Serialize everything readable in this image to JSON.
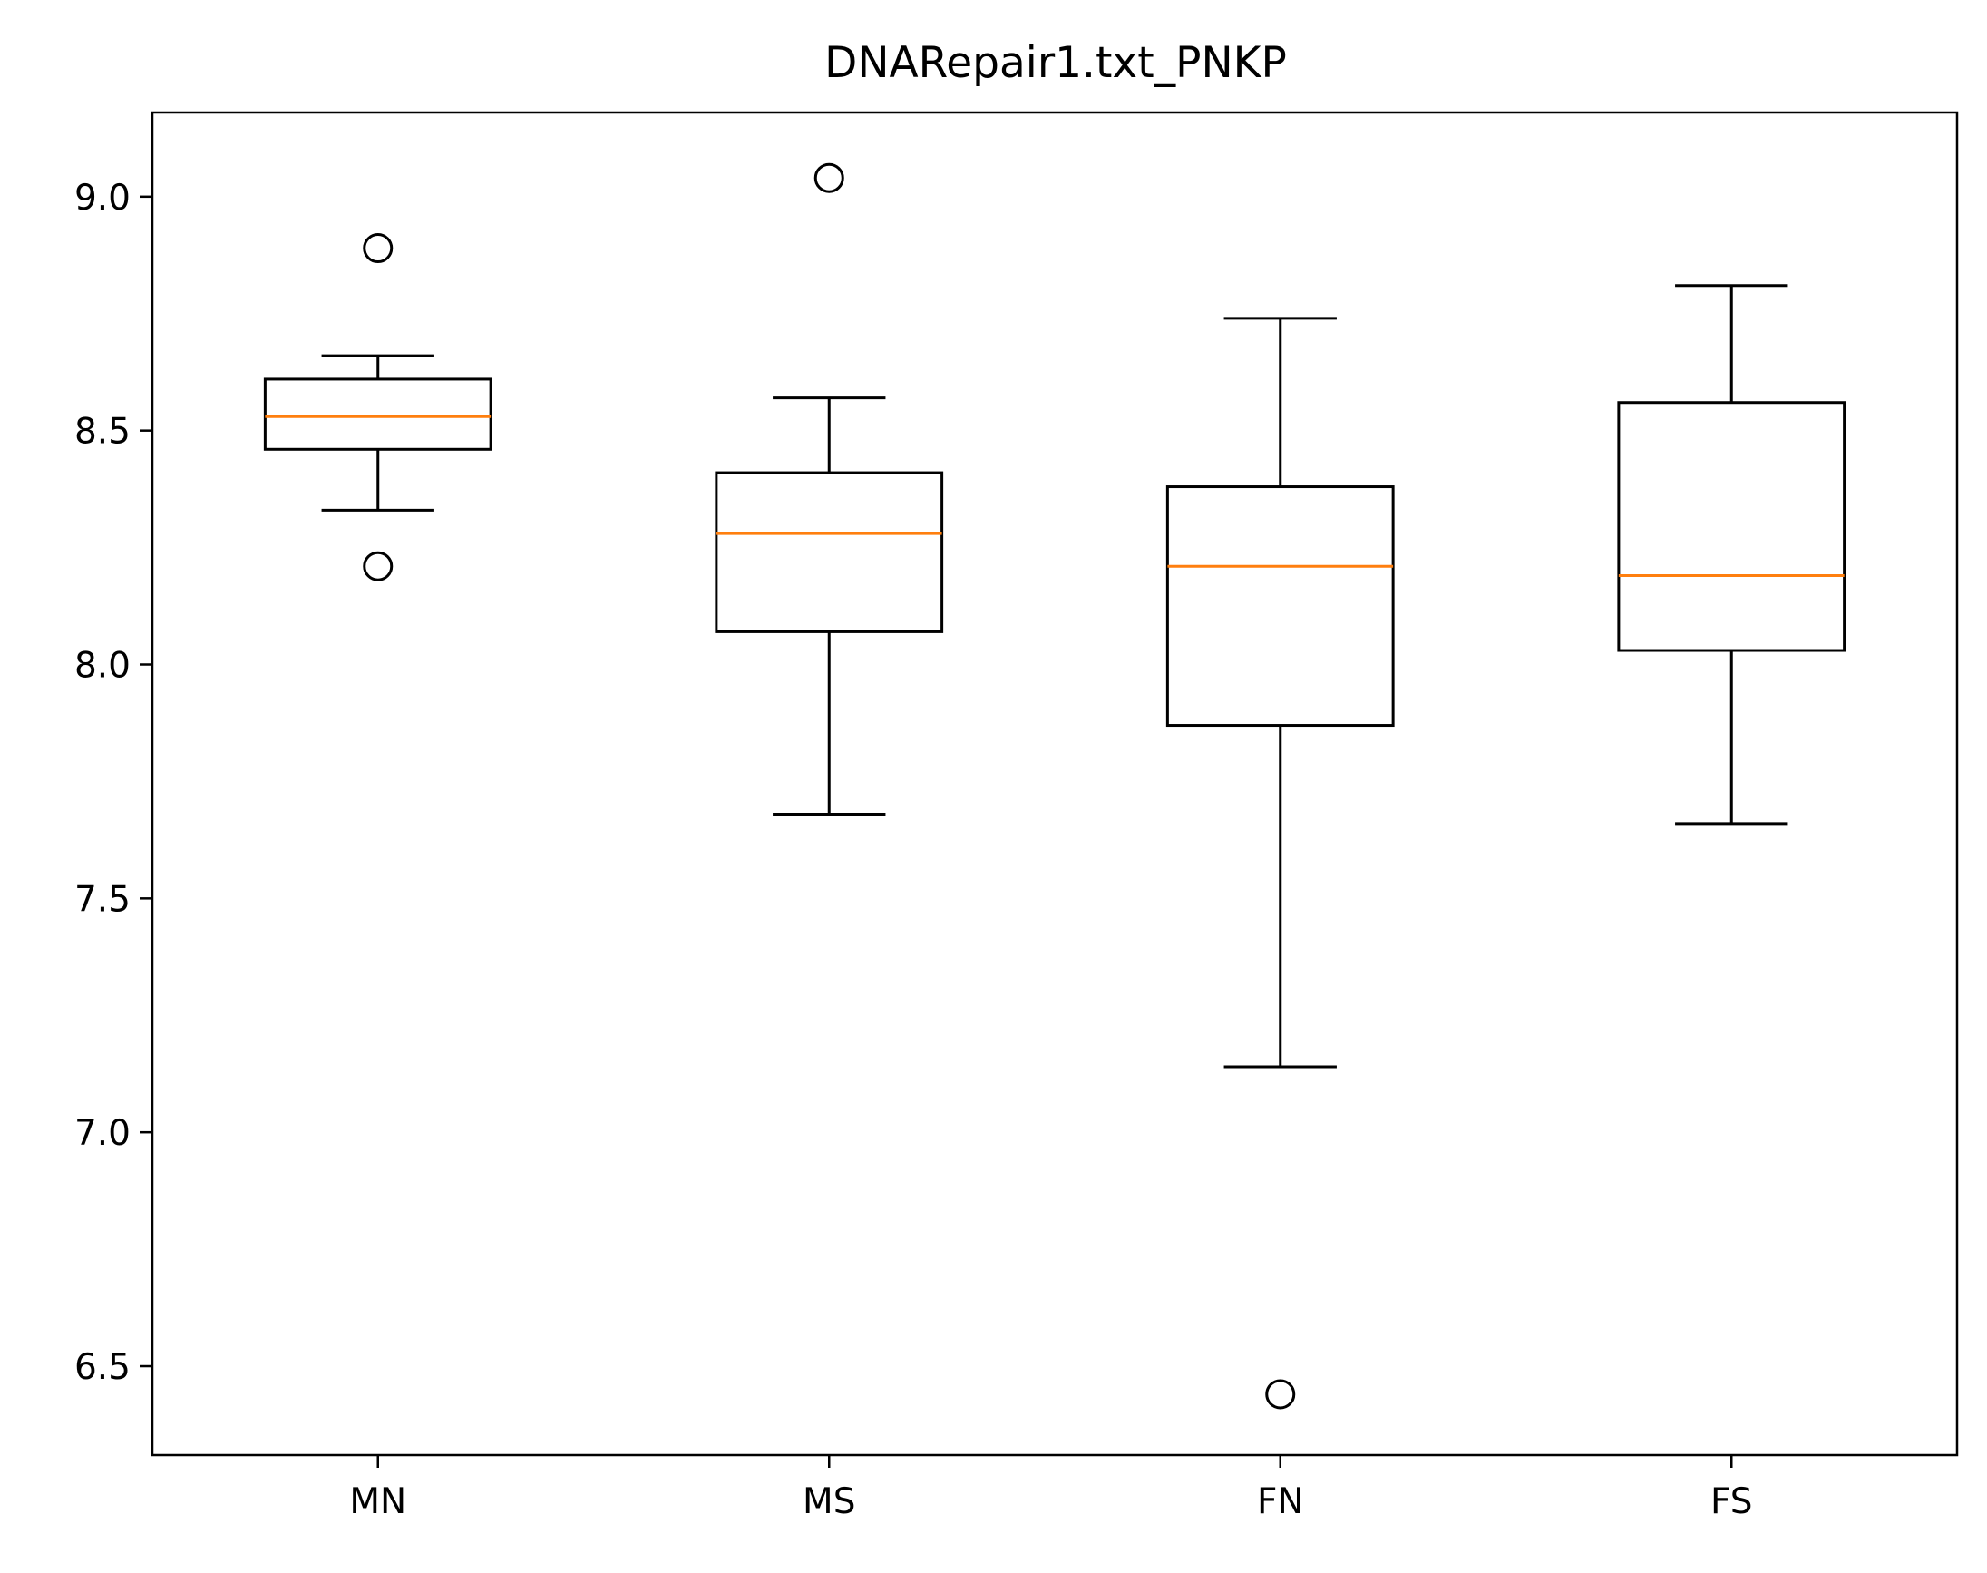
{
  "chart_data": {
    "type": "box",
    "title": "DNARepair1.txt_PNKP",
    "xlabel": "",
    "ylabel": "",
    "categories": [
      "MN",
      "MS",
      "FN",
      "FS"
    ],
    "ylim": [
      6.31,
      9.18
    ],
    "yticks": [
      6.5,
      7.0,
      7.5,
      8.0,
      8.5,
      9.0
    ],
    "ytick_labels": [
      "6.5",
      "7.0",
      "7.5",
      "8.0",
      "8.5",
      "9.0"
    ],
    "grid": false,
    "boxes": [
      {
        "category": "MN",
        "whisker_low": 8.33,
        "q1": 8.46,
        "median": 8.53,
        "q3": 8.61,
        "whisker_high": 8.66,
        "outliers": [
          8.89,
          8.21
        ]
      },
      {
        "category": "MS",
        "whisker_low": 7.68,
        "q1": 8.07,
        "median": 8.28,
        "q3": 8.41,
        "whisker_high": 8.57,
        "outliers": [
          9.04
        ]
      },
      {
        "category": "FN",
        "whisker_low": 7.14,
        "q1": 7.87,
        "median": 8.21,
        "q3": 8.38,
        "whisker_high": 8.74,
        "outliers": [
          6.44
        ]
      },
      {
        "category": "FS",
        "whisker_low": 7.66,
        "q1": 8.03,
        "median": 8.19,
        "q3": 8.56,
        "whisker_high": 8.81,
        "outliers": []
      }
    ],
    "colors": {
      "box": "#000000",
      "median": "#ff7f0e",
      "outlier": "#000000",
      "background": "#ffffff"
    }
  }
}
